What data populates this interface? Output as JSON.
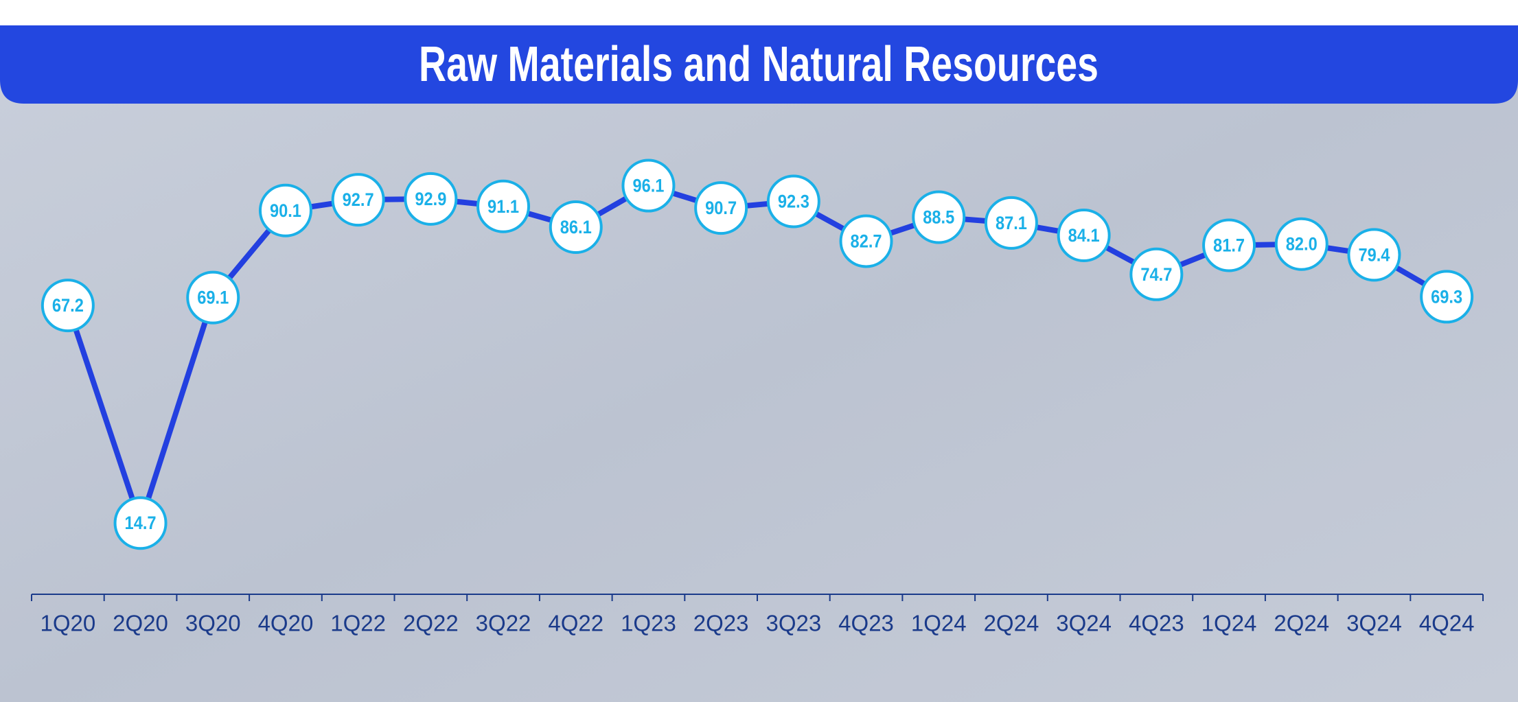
{
  "chart_data": {
    "type": "line",
    "title": "Raw Materials and Natural Resources",
    "categories": [
      "1Q20",
      "2Q20",
      "3Q20",
      "4Q20",
      "1Q22",
      "2Q22",
      "3Q22",
      "4Q22",
      "1Q23",
      "2Q23",
      "3Q23",
      "4Q23",
      "1Q24",
      "2Q24",
      "3Q24",
      "4Q23",
      "1Q24",
      "2Q24",
      "3Q24",
      "4Q24"
    ],
    "values": [
      67.2,
      14.7,
      69.1,
      90.1,
      92.7,
      92.9,
      91.1,
      86.1,
      96.1,
      90.7,
      92.3,
      82.7,
      88.5,
      87.1,
      84.1,
      74.7,
      81.7,
      82.0,
      79.4,
      69.3
    ],
    "value_labels": [
      "67.2",
      "14.7",
      "69.1",
      "90.1",
      "92.7",
      "92.9",
      "91.1",
      "86.1",
      "96.1",
      "90.7",
      "92.3",
      "82.7",
      "88.5",
      "87.1",
      "84.1",
      "74.7",
      "81.7",
      "82.0",
      "79.4",
      "69.3"
    ],
    "color": "#2340e0",
    "marker_color": "#1ab0e8",
    "ylim": [
      0,
      100
    ]
  }
}
